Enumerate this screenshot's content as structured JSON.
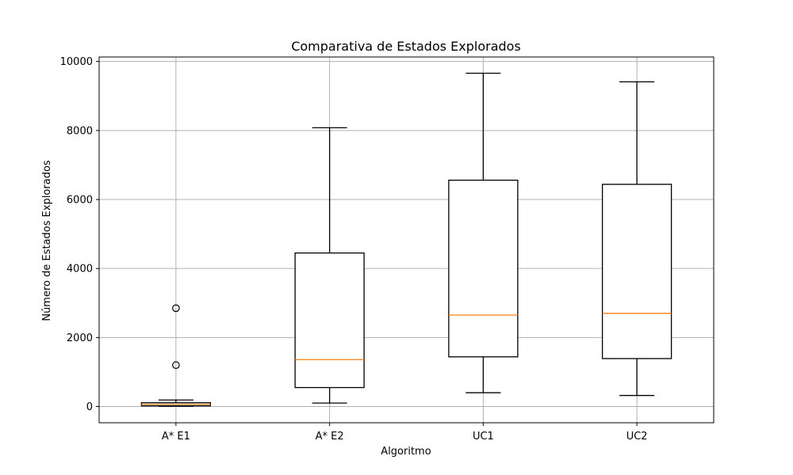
{
  "chart_data": {
    "type": "box",
    "title": "Comparativa de Estados Explorados",
    "xlabel": "Algoritmo",
    "ylabel": "Número de Estados Explorados",
    "ylim": [
      -470,
      10130
    ],
    "yticks": [
      0,
      2000,
      4000,
      6000,
      8000,
      10000
    ],
    "grid": true,
    "colors": {
      "box": "#000000",
      "median": "#ff7f0e",
      "grid": "#b0b0b0"
    },
    "categories": [
      "A* E1",
      "A* E2",
      "UC1",
      "UC2"
    ],
    "boxes": [
      {
        "label": "A* E1",
        "whisker_low": 10,
        "q1": 20,
        "median": 60,
        "q3": 110,
        "whisker_high": 190,
        "outliers": [
          1200,
          2850
        ]
      },
      {
        "label": "A* E2",
        "whisker_low": 100,
        "q1": 550,
        "median": 1360,
        "q3": 4450,
        "whisker_high": 8080,
        "outliers": []
      },
      {
        "label": "UC1",
        "whisker_low": 400,
        "q1": 1440,
        "median": 2650,
        "q3": 6560,
        "whisker_high": 9660,
        "outliers": []
      },
      {
        "label": "UC2",
        "whisker_low": 320,
        "q1": 1390,
        "median": 2700,
        "q3": 6440,
        "whisker_high": 9410,
        "outliers": []
      }
    ]
  }
}
